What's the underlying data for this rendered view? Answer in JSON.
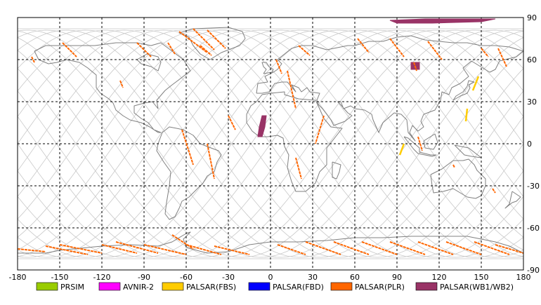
{
  "map": {
    "lon_range": [
      -180,
      180
    ],
    "lat_range": [
      -90,
      90
    ],
    "lon_ticks": [
      -180,
      -150,
      -120,
      -90,
      -60,
      -30,
      0,
      30,
      60,
      90,
      120,
      150,
      180
    ],
    "lat_ticks": [
      90,
      60,
      30,
      0,
      -30,
      -60,
      -90
    ],
    "grid": "dashed",
    "coastline_color": "#808080",
    "orbit_color": "#c8c8c8"
  },
  "legend": {
    "placement": "bottom",
    "items": [
      {
        "key": "prism",
        "label": "PRSIM",
        "color": "#99cc00"
      },
      {
        "key": "avnir2",
        "label": "AVNIR-2",
        "color": "#ff00ff"
      },
      {
        "key": "palsar_fbs",
        "label": "PALSAR(FBS)",
        "color": "#ffcc00"
      },
      {
        "key": "palsar_fbd",
        "label": "PALSAR(FBD)",
        "color": "#0000ff"
      },
      {
        "key": "palsar_plr",
        "label": "PALSAR(PLR)",
        "color": "#ff6600"
      },
      {
        "key": "palsar_wb",
        "label": "PALSAR(WB1/WB2)",
        "color": "#993366"
      }
    ]
  },
  "footprints": {
    "plr_strips": [
      {
        "lon1": -65,
        "lat1": 80,
        "lon2": -45,
        "lat2": 65
      },
      {
        "lon1": -55,
        "lat1": 82,
        "lon2": -40,
        "lat2": 67
      },
      {
        "lon1": -45,
        "lat1": 81,
        "lon2": -32,
        "lat2": 68
      },
      {
        "lon1": -50,
        "lat1": 70,
        "lon2": -42,
        "lat2": 63
      },
      {
        "lon1": -95,
        "lat1": 72,
        "lon2": -85,
        "lat2": 62
      },
      {
        "lon1": -148,
        "lat1": 72,
        "lon2": -138,
        "lat2": 62
      },
      {
        "lon1": -170,
        "lat1": 62,
        "lon2": -168,
        "lat2": 58
      },
      {
        "lon1": -73,
        "lat1": 72,
        "lon2": -68,
        "lat2": 64
      },
      {
        "lon1": 20,
        "lat1": 70,
        "lon2": 28,
        "lat2": 63
      },
      {
        "lon1": 62,
        "lat1": 75,
        "lon2": 70,
        "lat2": 65
      },
      {
        "lon1": 85,
        "lat1": 75,
        "lon2": 95,
        "lat2": 62
      },
      {
        "lon1": 112,
        "lat1": 73,
        "lon2": 122,
        "lat2": 60
      },
      {
        "lon1": 150,
        "lat1": 68,
        "lon2": 155,
        "lat2": 62
      },
      {
        "lon1": 162,
        "lat1": 68,
        "lon2": 168,
        "lat2": 55
      },
      {
        "lon1": 4,
        "lat1": 60,
        "lon2": 8,
        "lat2": 50
      },
      {
        "lon1": 12,
        "lat1": 52,
        "lon2": 18,
        "lat2": 25
      },
      {
        "lon1": -107,
        "lat1": 45,
        "lon2": -105,
        "lat2": 40
      },
      {
        "lon1": -63,
        "lat1": 10,
        "lon2": -55,
        "lat2": -15
      },
      {
        "lon1": -45,
        "lat1": 0,
        "lon2": -40,
        "lat2": -25
      },
      {
        "lon1": -30,
        "lat1": 20,
        "lon2": -25,
        "lat2": 10
      },
      {
        "lon1": 18,
        "lat1": -10,
        "lon2": 22,
        "lat2": -25
      },
      {
        "lon1": 38,
        "lat1": 20,
        "lon2": 32,
        "lat2": 0
      },
      {
        "lon1": 105,
        "lat1": 5,
        "lon2": 108,
        "lat2": -5
      },
      {
        "lon1": 130,
        "lat1": -15,
        "lon2": 131,
        "lat2": -17
      },
      {
        "lon1": 158,
        "lat1": -32,
        "lon2": 160,
        "lat2": -35
      },
      {
        "lon1": 102,
        "lat1": 58,
        "lon2": 104,
        "lat2": 52
      },
      {
        "lon1": -180,
        "lat1": -75,
        "lon2": -160,
        "lat2": -77
      },
      {
        "lon1": -160,
        "lat1": -73,
        "lon2": -130,
        "lat2": -79
      },
      {
        "lon1": -150,
        "lat1": -72,
        "lon2": -120,
        "lat2": -78
      },
      {
        "lon1": -120,
        "lat1": -72,
        "lon2": -95,
        "lat2": -78
      },
      {
        "lon1": -110,
        "lat1": -70,
        "lon2": -80,
        "lat2": -78
      },
      {
        "lon1": -90,
        "lat1": -72,
        "lon2": -60,
        "lat2": -79
      },
      {
        "lon1": -70,
        "lat1": -65,
        "lon2": -55,
        "lat2": -75
      },
      {
        "lon1": -60,
        "lat1": -72,
        "lon2": -35,
        "lat2": -79
      },
      {
        "lon1": -40,
        "lat1": -73,
        "lon2": -15,
        "lat2": -79
      },
      {
        "lon1": 5,
        "lat1": -72,
        "lon2": 25,
        "lat2": -79
      },
      {
        "lon1": 25,
        "lat1": -70,
        "lon2": 50,
        "lat2": -79
      },
      {
        "lon1": 45,
        "lat1": -70,
        "lon2": 70,
        "lat2": -79
      },
      {
        "lon1": 65,
        "lat1": -70,
        "lon2": 90,
        "lat2": -79
      },
      {
        "lon1": 85,
        "lat1": -70,
        "lon2": 110,
        "lat2": -79
      },
      {
        "lon1": 105,
        "lat1": -70,
        "lon2": 130,
        "lat2": -79
      },
      {
        "lon1": 125,
        "lat1": -70,
        "lon2": 150,
        "lat2": -79
      },
      {
        "lon1": 145,
        "lat1": -70,
        "lon2": 170,
        "lat2": -79
      },
      {
        "lon1": 160,
        "lat1": -72,
        "lon2": 180,
        "lat2": -78
      }
    ],
    "fbs_strips": [
      {
        "lon1": 140,
        "lat1": 25,
        "lon2": 139,
        "lat2": 16
      },
      {
        "lon1": 95,
        "lat1": 0,
        "lon2": 92,
        "lat2": -8
      },
      {
        "lon1": 148,
        "lat1": 48,
        "lon2": 144,
        "lat2": 38
      }
    ],
    "wb_areas": [
      {
        "name": "arctic",
        "points": [
          [
            85,
            88
          ],
          [
            110,
            89
          ],
          [
            160,
            89
          ],
          [
            150,
            87
          ],
          [
            115,
            86
          ],
          [
            90,
            86
          ]
        ]
      },
      {
        "name": "africa",
        "points": [
          [
            -6,
            20
          ],
          [
            -3,
            20
          ],
          [
            -4,
            12
          ],
          [
            -6,
            5
          ],
          [
            -9,
            5
          ],
          [
            -8,
            12
          ]
        ]
      },
      {
        "name": "siberia",
        "points": [
          [
            100,
            58
          ],
          [
            106,
            58
          ],
          [
            106,
            53
          ],
          [
            100,
            53
          ]
        ]
      }
    ]
  }
}
